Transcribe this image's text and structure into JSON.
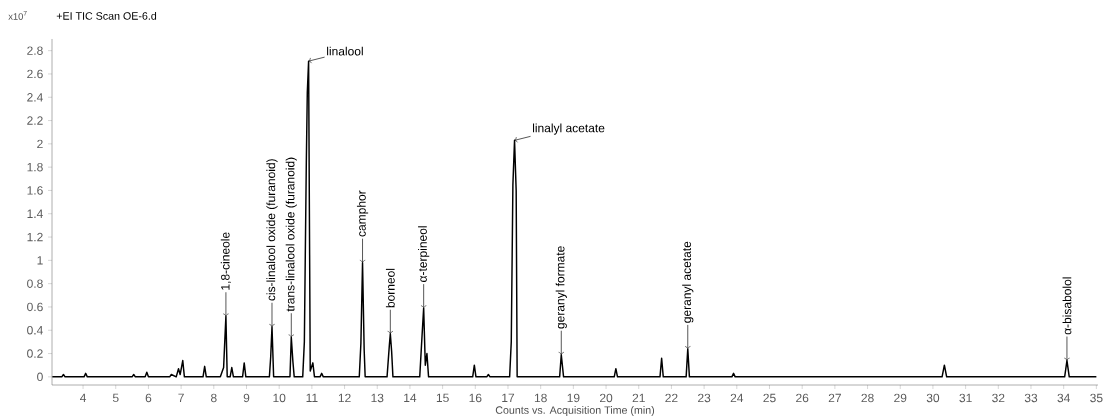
{
  "chart_data": {
    "type": "line",
    "title": "+EI TIC Scan OE-6.d",
    "ylabel": "x10$^{7}$",
    "xlabel": "Counts vs. Acquisition Time (min)",
    "color": "#000000",
    "xlim": [
      3.05,
      35.05
    ],
    "ylim": [
      -0.07,
      2.9
    ],
    "xticks": [
      4,
      5,
      6,
      7,
      8,
      9,
      10,
      11,
      12,
      13,
      14,
      15,
      16,
      17,
      18,
      19,
      20,
      21,
      22,
      23,
      24,
      25,
      26,
      27,
      28,
      29,
      30,
      31,
      32,
      33,
      34,
      35
    ],
    "yticks": [
      0,
      0.2,
      0.4,
      0.6,
      0.8,
      1,
      1.2,
      1.4,
      1.6,
      1.8,
      2,
      2.2,
      2.4,
      2.6,
      2.8
    ],
    "x": [
      3.06,
      3.35,
      3.4,
      3.45,
      4.03,
      4.08,
      4.13,
      5.5,
      5.55,
      5.6,
      5.9,
      5.95,
      6.0,
      6.65,
      6.7,
      6.85,
      6.92,
      6.97,
      7.05,
      7.1,
      7.67,
      7.72,
      7.77,
      8.2,
      8.3,
      8.33,
      8.37,
      8.41,
      8.5,
      8.55,
      8.6,
      8.88,
      8.93,
      8.98,
      9.7,
      9.74,
      9.78,
      9.83,
      10.33,
      10.37,
      10.42,
      10.46,
      10.72,
      10.77,
      10.8,
      10.83,
      10.86,
      10.9,
      10.95,
      11.03,
      11.08,
      11.25,
      11.3,
      11.35,
      12.45,
      12.5,
      12.55,
      12.6,
      12.63,
      13.3,
      13.37,
      13.4,
      13.44,
      13.48,
      14.3,
      14.37,
      14.42,
      14.47,
      14.52,
      14.57,
      15.92,
      15.97,
      16.02,
      16.35,
      16.4,
      16.45,
      17.05,
      17.1,
      17.15,
      17.2,
      17.25,
      17.28,
      18.58,
      18.63,
      18.7,
      20.25,
      20.3,
      20.35,
      21.65,
      21.7,
      21.75,
      22.45,
      22.5,
      22.55,
      23.85,
      23.9,
      23.95,
      30.28,
      30.35,
      30.42,
      34.03,
      34.1,
      34.17,
      35.0
    ],
    "values": [
      0,
      0,
      0.02,
      0,
      0,
      0.03,
      0,
      0,
      0.02,
      0,
      0,
      0.04,
      0,
      0,
      0.02,
      0,
      0.07,
      0.02,
      0.14,
      0,
      0,
      0.09,
      0,
      0,
      0.08,
      0.27,
      0.52,
      0,
      0,
      0.08,
      0,
      0,
      0.12,
      0,
      0,
      0.17,
      0.43,
      0,
      0,
      0.34,
      0.13,
      0,
      0,
      0.3,
      1.08,
      1.84,
      2.44,
      2.71,
      0.05,
      0.12,
      0,
      0,
      0.03,
      0,
      0,
      0.29,
      0.98,
      0.23,
      0,
      0,
      0.27,
      0.37,
      0.22,
      0,
      0,
      0.35,
      0.59,
      0.1,
      0.2,
      0,
      0,
      0.1,
      0,
      0,
      0.02,
      0,
      0,
      0.3,
      1.65,
      2.03,
      1.6,
      0,
      0,
      0.19,
      0,
      0,
      0.07,
      0,
      0,
      0.16,
      0,
      0,
      0.24,
      0,
      0,
      0.03,
      0,
      0,
      0.1,
      0,
      0,
      0.14,
      0,
      0
    ],
    "annotations": [
      {
        "text": "1,8-cineole",
        "x": 8.37,
        "y": 0.52
      },
      {
        "text": "cis-linalool oxide (furanoid)",
        "x": 9.78,
        "y": 0.43
      },
      {
        "text": "trans-linalool oxide (furanoid)",
        "x": 10.37,
        "y": 0.34
      },
      {
        "text": "linalool",
        "x": 10.9,
        "y": 2.71
      },
      {
        "text": "camphor",
        "x": 12.55,
        "y": 0.98
      },
      {
        "text": "borneol",
        "x": 13.4,
        "y": 0.37
      },
      {
        "text": "α-terpineol",
        "x": 14.42,
        "y": 0.59
      },
      {
        "text": "linalyl acetate",
        "x": 17.2,
        "y": 2.03
      },
      {
        "text": "geranyl formate",
        "x": 18.63,
        "y": 0.19
      },
      {
        "text": "geranyl acetate",
        "x": 22.5,
        "y": 0.24
      },
      {
        "text": "α-bisabolol",
        "x": 34.1,
        "y": 0.14
      }
    ]
  }
}
